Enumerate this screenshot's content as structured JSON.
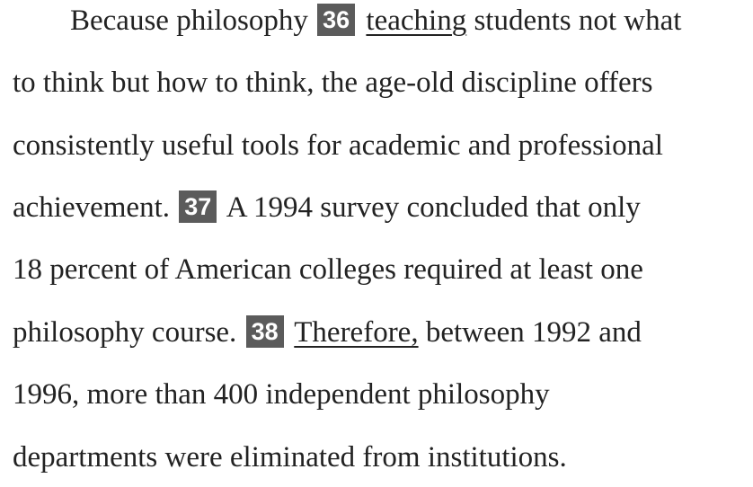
{
  "passage": {
    "line1": {
      "pre": "Because philosophy",
      "q36": "36",
      "underlined": "teaching",
      "post": "students not what"
    },
    "line2": "to think but how to think, the age-old discipline offers",
    "line3": "consistently useful tools for academic and professional",
    "line4": {
      "pre": "achievement.",
      "q37": "37",
      "post": "A 1994 survey concluded that only"
    },
    "line5": "18 percent of American colleges required at least one",
    "line6": {
      "pre": "philosophy course.",
      "q38": "38",
      "underlined": "Therefore,",
      "post": "between 1992 and"
    },
    "line7": "1996, more than 400 independent philosophy",
    "line8": "departments were eliminated from institutions."
  },
  "colors": {
    "text": "#222222",
    "question_badge_bg": "#5b5b5b",
    "question_badge_text": "#ffffff"
  }
}
